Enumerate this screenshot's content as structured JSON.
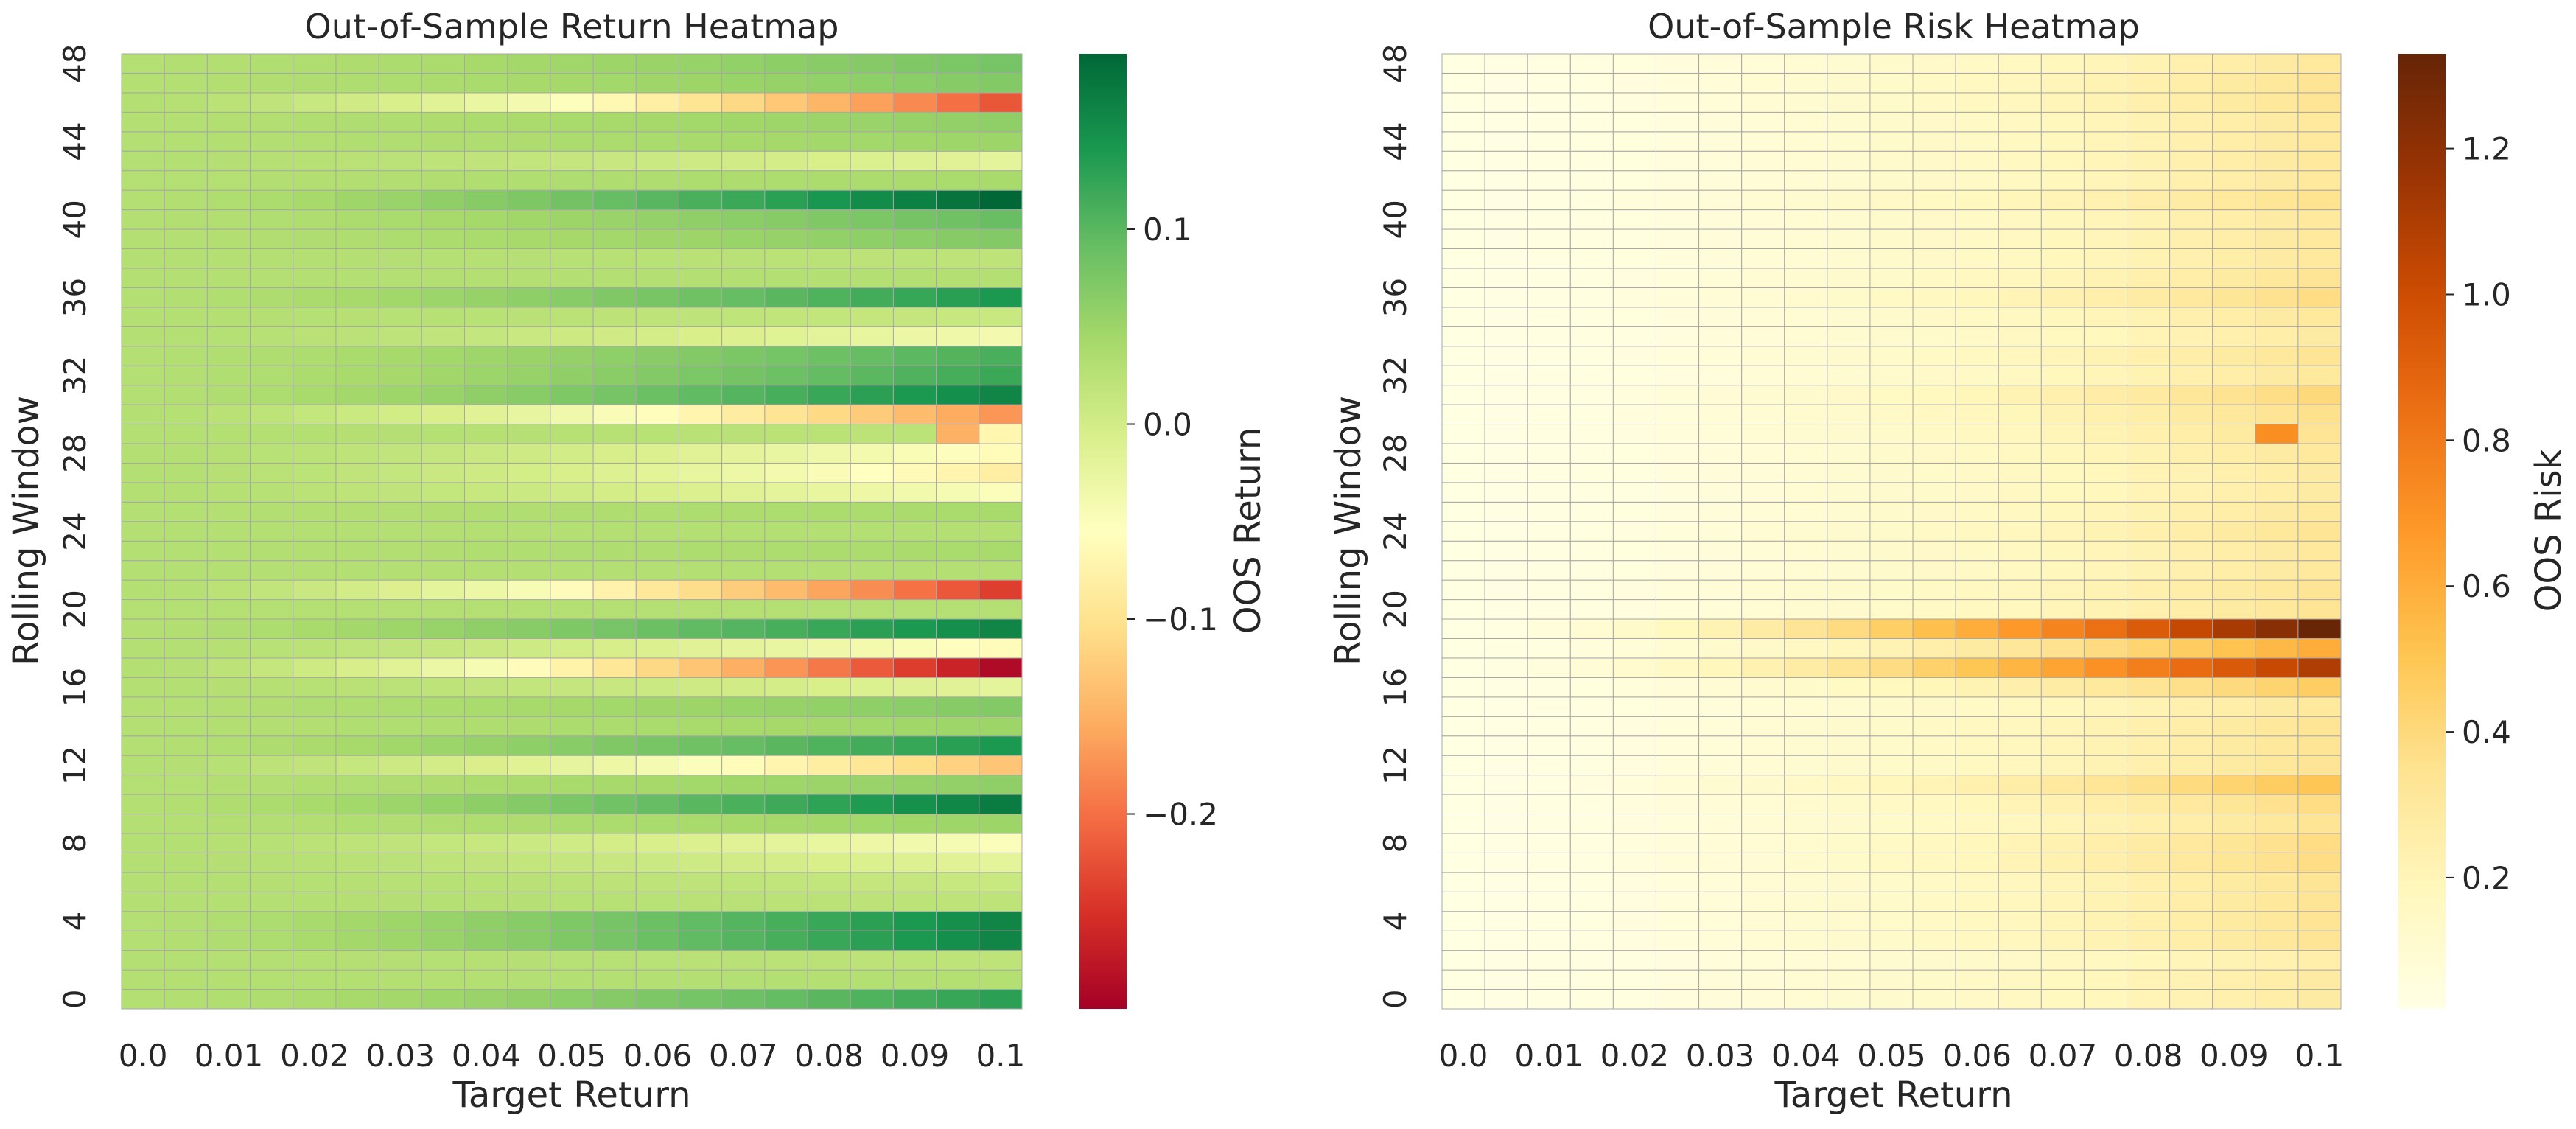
{
  "chart_data": [
    {
      "type": "heatmap",
      "title": "Out-of-Sample Return Heatmap",
      "xlabel": "Target Return",
      "ylabel": "Rolling Window",
      "colorbar_label": "OOS Return",
      "colormap": "RdYlGn",
      "colormap_stops": [
        "#a50026",
        "#d73027",
        "#f46d43",
        "#fdae61",
        "#fee08b",
        "#ffffbf",
        "#d9ef8b",
        "#a6d96a",
        "#66bd63",
        "#1a9850",
        "#006837"
      ],
      "vmin": -0.3,
      "vmax": 0.19,
      "colorbar_ticks": [
        0.1,
        0.0,
        -0.1,
        -0.2
      ],
      "colorbar_tick_labels": [
        "0.1",
        "0.0",
        "−0.1",
        "−0.2"
      ],
      "x_tick_labels": [
        "0.0",
        "0.01",
        "0.02",
        "0.03",
        "0.04",
        "0.05",
        "0.06",
        "0.07",
        "0.08",
        "0.09",
        "0.1"
      ],
      "y_tick_labels": [
        "48",
        "44",
        "40",
        "36",
        "32",
        "28",
        "24",
        "20",
        "16",
        "12",
        "8",
        "4",
        "0"
      ],
      "grid_cols": 21,
      "x_range": [
        0.0,
        0.1
      ],
      "y_range": [
        0,
        49
      ],
      "row_end_values": {
        "0": 0.13,
        "1": 0.03,
        "2": 0.02,
        "3": 0.16,
        "4": 0.16,
        "5": 0.02,
        "6": 0.01,
        "7": -0.02,
        "8": -0.05,
        "9": 0.05,
        "10": 0.17,
        "11": 0.06,
        "12": -0.13,
        "13": 0.14,
        "14": 0.05,
        "15": 0.07,
        "16": -0.02,
        "17": -0.29,
        "18": -0.06,
        "19": 0.16,
        "20": 0.03,
        "21": -0.24,
        "22": 0.03,
        "23": 0.04,
        "24": 0.03,
        "25": 0.04,
        "26": -0.05,
        "27": -0.08,
        "28": -0.06,
        "29": 0.02,
        "30": -0.17,
        "31": 0.16,
        "32": 0.12,
        "33": 0.11,
        "34": -0.04,
        "35": 0.01,
        "36": 0.14,
        "37": 0.03,
        "38": 0.02,
        "39": 0.07,
        "40": 0.09,
        "41": 0.19,
        "42": 0.04,
        "43": -0.02,
        "44": 0.05,
        "45": 0.06,
        "46": -0.22,
        "47": 0.07,
        "48": 0.08
      },
      "cell_overrides": {
        "29_19": -0.15,
        "29_20": -0.07
      },
      "base_value": 0.03
    },
    {
      "type": "heatmap",
      "title": "Out-of-Sample Risk Heatmap",
      "xlabel": "Target Return",
      "ylabel": "Rolling Window",
      "colorbar_label": "OOS Risk",
      "colormap": "YlOrBr",
      "colormap_stops": [
        "#ffffe5",
        "#fff7bc",
        "#fee391",
        "#fec44f",
        "#fe9929",
        "#ec7014",
        "#cc4c02",
        "#993404",
        "#662506"
      ],
      "vmin": 0.02,
      "vmax": 1.33,
      "colorbar_ticks": [
        1.2,
        1.0,
        0.8,
        0.6,
        0.4,
        0.2
      ],
      "colorbar_tick_labels": [
        "1.2",
        "1.0",
        "0.8",
        "0.6",
        "0.4",
        "0.2"
      ],
      "x_tick_labels": [
        "0.0",
        "0.01",
        "0.02",
        "0.03",
        "0.04",
        "0.05",
        "0.06",
        "0.07",
        "0.08",
        "0.09",
        "0.1"
      ],
      "y_tick_labels": [
        "48",
        "44",
        "40",
        "36",
        "32",
        "28",
        "24",
        "20",
        "16",
        "12",
        "8",
        "4",
        "0"
      ],
      "grid_cols": 21,
      "x_range": [
        0.0,
        0.1
      ],
      "y_range": [
        0,
        49
      ],
      "row_end_values": {
        "0": 0.28,
        "1": 0.28,
        "2": 0.25,
        "3": 0.33,
        "4": 0.33,
        "5": 0.33,
        "6": 0.33,
        "7": 0.38,
        "8": 0.38,
        "9": 0.33,
        "10": 0.38,
        "11": 0.5,
        "12": 0.33,
        "13": 0.33,
        "14": 0.33,
        "15": 0.3,
        "16": 0.46,
        "17": 1.1,
        "18": 0.6,
        "19": 1.32,
        "20": 0.33,
        "21": 0.33,
        "22": 0.3,
        "23": 0.3,
        "24": 0.33,
        "25": 0.3,
        "26": 0.28,
        "27": 0.28,
        "28": 0.3,
        "29": 0.33,
        "30": 0.36,
        "31": 0.4,
        "32": 0.3,
        "33": 0.33,
        "34": 0.28,
        "35": 0.3,
        "36": 0.38,
        "37": 0.33,
        "38": 0.3,
        "39": 0.3,
        "40": 0.3,
        "41": 0.35,
        "42": 0.3,
        "43": 0.3,
        "44": 0.3,
        "45": 0.3,
        "46": 0.33,
        "47": 0.33,
        "48": 0.3
      },
      "cell_overrides": {
        "29_19": 0.72
      },
      "base_value": 0.03
    }
  ]
}
